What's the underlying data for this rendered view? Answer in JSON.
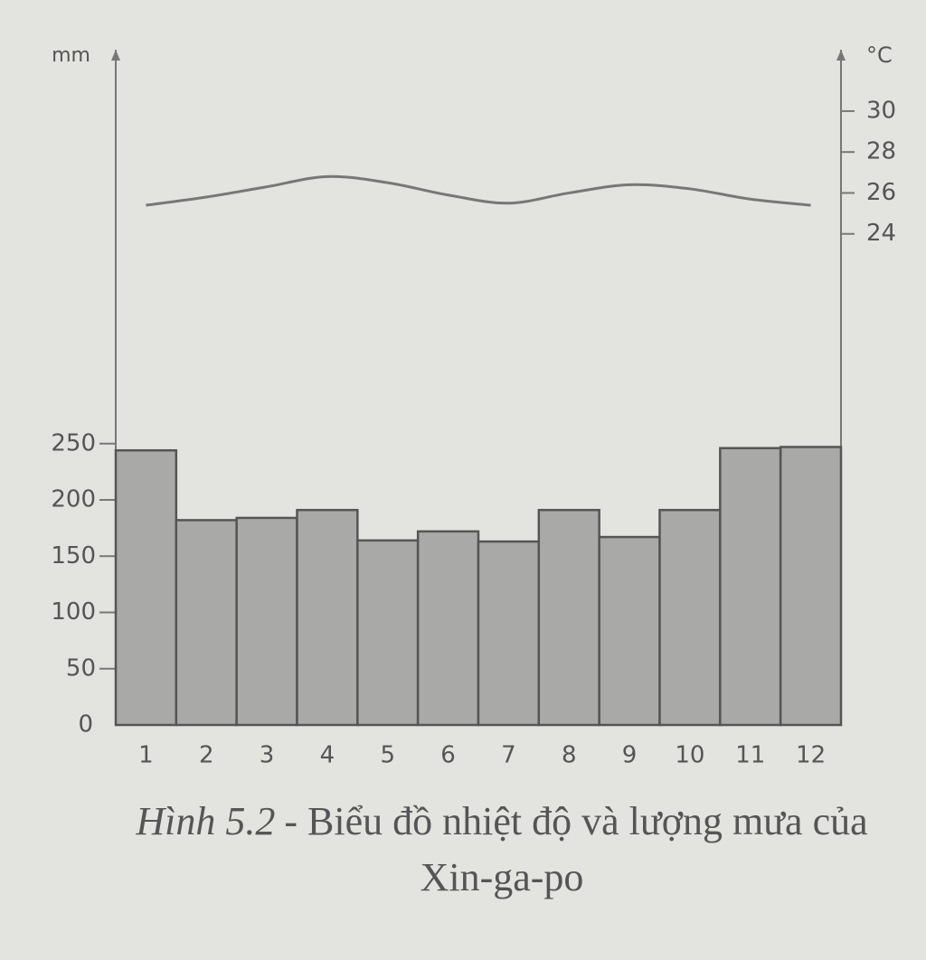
{
  "chart_data": {
    "type": "combo",
    "y_label": "mm",
    "y2_label": "°C",
    "caption_label": "Hình 5.2",
    "caption": "- Biểu đồ nhiệt độ và lượng mưa của Xin-ga-po",
    "categories": [
      "1",
      "2",
      "3",
      "4",
      "5",
      "6",
      "7",
      "8",
      "9",
      "10",
      "11",
      "12"
    ],
    "series": [
      {
        "type": "bar",
        "color": "#a9a9a7",
        "values": [
          244,
          182,
          184,
          191,
          164,
          172,
          163,
          191,
          167,
          191,
          246,
          247
        ]
      },
      {
        "type": "line",
        "axis": "y2",
        "color": "#777777",
        "values": [
          25.4,
          25.8,
          26.3,
          26.8,
          26.5,
          25.9,
          25.5,
          26.0,
          26.4,
          26.2,
          25.7,
          25.4
        ]
      }
    ],
    "ylim": [
      0,
      600
    ],
    "yticks": [
      0,
      50,
      100,
      150,
      200,
      250
    ],
    "y2lim": [
      0,
      33
    ],
    "y2ticks": [
      24,
      26,
      28,
      30
    ]
  }
}
